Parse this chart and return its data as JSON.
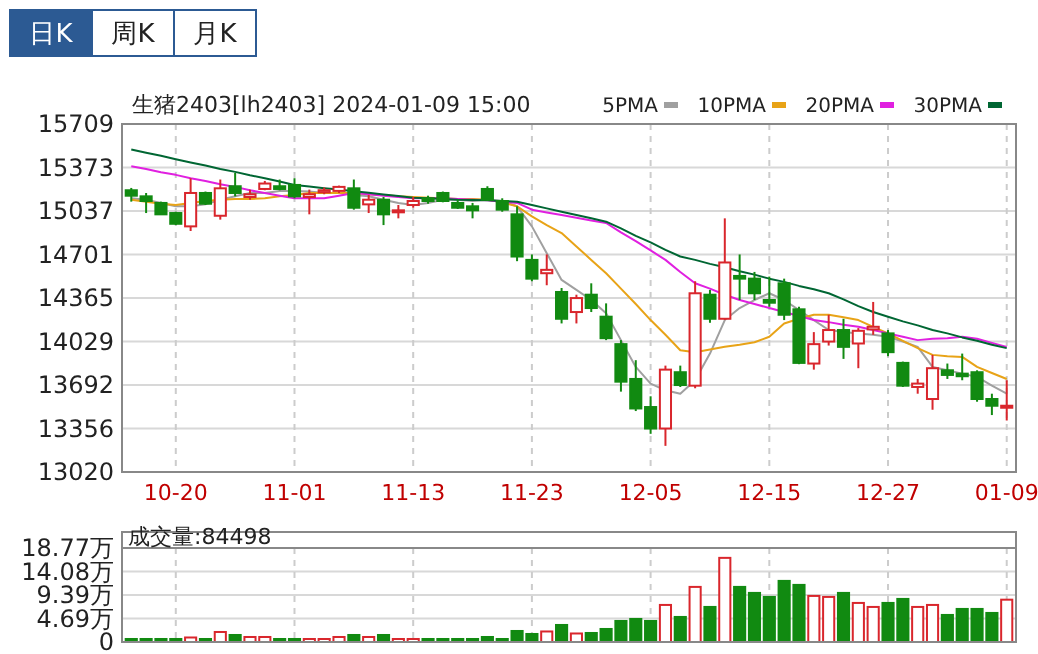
{
  "chart_data": [
    {
      "type": "candlestick",
      "title": "生猪2403[lh2403] 2024-01-09 15:00",
      "annotations": [
        "日K",
        "周K",
        "月K"
      ],
      "categories": [
        null,
        null,
        null,
        "10-20",
        null,
        null,
        null,
        null,
        null,
        null,
        null,
        "11-01",
        null,
        null,
        null,
        null,
        null,
        null,
        null,
        "11-13",
        null,
        null,
        null,
        null,
        null,
        null,
        null,
        "11-23",
        null,
        null,
        null,
        null,
        null,
        null,
        null,
        "12-05",
        null,
        null,
        null,
        null,
        null,
        null,
        null,
        "12-15",
        null,
        null,
        null,
        null,
        null,
        null,
        null,
        "12-27",
        null,
        null,
        null,
        null,
        null,
        null,
        null,
        "01-09"
      ],
      "ohlc": [
        [
          15197,
          15215,
          15109,
          15155
        ],
        [
          15150,
          15176,
          15021,
          15114
        ],
        [
          15099,
          15109,
          15011,
          15011
        ],
        [
          15021,
          15031,
          14928,
          14938
        ],
        [
          14918,
          15290,
          14882,
          15176
        ],
        [
          15176,
          15187,
          15083,
          15093
        ],
        [
          15000,
          15280,
          14970,
          15212
        ],
        [
          15228,
          15331,
          15150,
          15176
        ],
        [
          15145,
          15202,
          15124,
          15166
        ],
        [
          15207,
          15269,
          15197,
          15249
        ],
        [
          15228,
          15280,
          15197,
          15207
        ],
        [
          15238,
          15290,
          15135,
          15150
        ],
        [
          15145,
          15202,
          15011,
          15166
        ],
        [
          15181,
          15218,
          15166,
          15197
        ],
        [
          15192,
          15233,
          15176,
          15223
        ],
        [
          15212,
          15280,
          15047,
          15062
        ],
        [
          15088,
          15161,
          15021,
          15124
        ],
        [
          15124,
          15145,
          14928,
          15011
        ],
        [
          15031,
          15083,
          14980,
          15042
        ],
        [
          15083,
          15145,
          15062,
          15114
        ],
        [
          15135,
          15155,
          15093,
          15114
        ],
        [
          15176,
          15187,
          15104,
          15114
        ],
        [
          15099,
          15124,
          15052,
          15062
        ],
        [
          15073,
          15099,
          14980,
          15042
        ],
        [
          15207,
          15228,
          15114,
          15124
        ],
        [
          15114,
          15135,
          15031,
          15047
        ],
        [
          15011,
          15073,
          14649,
          14685
        ],
        [
          14659,
          14701,
          14494,
          14514
        ],
        [
          14556,
          14701,
          14463,
          14582
        ],
        [
          14411,
          14442,
          14168,
          14204
        ],
        [
          14256,
          14390,
          14168,
          14364
        ],
        [
          14390,
          14478,
          14256,
          14287
        ],
        [
          14220,
          14323,
          14039,
          14054
        ],
        [
          14008,
          14039,
          13641,
          13718
        ],
        [
          13739,
          13884,
          13491,
          13511
        ],
        [
          13522,
          13605,
          13315,
          13356
        ],
        [
          13356,
          13842,
          13222,
          13811
        ],
        [
          13791,
          13842,
          13677,
          13692
        ],
        [
          13687,
          14494,
          13667,
          14401
        ],
        [
          14390,
          14427,
          14173,
          14204
        ],
        [
          14204,
          14980,
          14194,
          14639
        ],
        [
          14535,
          14701,
          14349,
          14514
        ],
        [
          14514,
          14566,
          14349,
          14401
        ],
        [
          14349,
          14530,
          14297,
          14328
        ],
        [
          14478,
          14514,
          14194,
          14235
        ],
        [
          14277,
          14297,
          13853,
          13863
        ],
        [
          13858,
          14101,
          13811,
          14008
        ],
        [
          14028,
          14235,
          13997,
          14117
        ],
        [
          14117,
          14204,
          13894,
          13987
        ],
        [
          14013,
          14132,
          13822,
          14111
        ],
        [
          14122,
          14334,
          14080,
          14142
        ],
        [
          14091,
          14117,
          13915,
          13946
        ],
        [
          13863,
          13873,
          13677,
          13687
        ],
        [
          13677,
          13739,
          13625,
          13703
        ],
        [
          13584,
          13925,
          13501,
          13822
        ],
        [
          13806,
          13858,
          13739,
          13770
        ],
        [
          13780,
          13935,
          13729,
          13760
        ],
        [
          13791,
          13806,
          13563,
          13584
        ],
        [
          13584,
          13625,
          13460,
          13532
        ],
        [
          13522,
          13729,
          13418,
          13532
        ]
      ],
      "series": [
        {
          "type": "line",
          "name": "5PMA",
          "color": "#a0a0a0",
          "values": [
            15135,
            15124,
            15099,
            15073,
            15073,
            15088,
            15124,
            15150,
            15176,
            15176,
            15192,
            15192,
            15187,
            15176,
            15176,
            15161,
            15150,
            15124,
            15099,
            15083,
            15099,
            15124,
            15124,
            15114,
            15124,
            15114,
            15073,
            14918,
            14711,
            14504,
            14427,
            14349,
            14246,
            14039,
            13832,
            13703,
            13651,
            13625,
            13729,
            13935,
            14194,
            14287,
            14349,
            14401,
            14349,
            14271,
            14194,
            14117,
            14101,
            14091,
            14080,
            14065,
            14028,
            13987,
            13832,
            13806,
            13780,
            13755,
            13687,
            13625
          ]
        },
        {
          "type": "line",
          "name": "10PMA",
          "color": "#e8a317",
          "values": [
            15124,
            15109,
            15093,
            15083,
            15099,
            15114,
            15124,
            15130,
            15130,
            15135,
            15150,
            15161,
            15176,
            15176,
            15176,
            15176,
            15166,
            15161,
            15150,
            15145,
            15140,
            15135,
            15130,
            15130,
            15124,
            15104,
            15073,
            14995,
            14928,
            14866,
            14763,
            14659,
            14556,
            14437,
            14318,
            14194,
            14080,
            13961,
            13946,
            13966,
            13987,
            14003,
            14023,
            14065,
            14168,
            14204,
            14235,
            14235,
            14215,
            14194,
            14142,
            14091,
            14034,
            13977,
            13925,
            13915,
            13909,
            13832,
            13785,
            13739
          ]
        },
        {
          "type": "line",
          "name": "20PMA",
          "color": "#e020e0",
          "values": [
            15383,
            15362,
            15336,
            15316,
            15290,
            15269,
            15243,
            15223,
            15197,
            15176,
            15155,
            15135,
            15135,
            15135,
            15155,
            15176,
            15166,
            15155,
            15145,
            15135,
            15135,
            15135,
            15130,
            15124,
            15119,
            15109,
            15099,
            15047,
            15026,
            15006,
            14985,
            14964,
            14944,
            14871,
            14804,
            14732,
            14659,
            14566,
            14478,
            14437,
            14390,
            14349,
            14318,
            14287,
            14256,
            14225,
            14194,
            14178,
            14158,
            14142,
            14117,
            14091,
            14065,
            14039,
            14049,
            14054,
            14065,
            14049,
            14018,
            13987
          ]
        },
        {
          "type": "line",
          "name": "30PMA",
          "color": "#006633",
          "values": [
            15512,
            15487,
            15463,
            15437,
            15412,
            15388,
            15362,
            15339,
            15313,
            15290,
            15264,
            15238,
            15226,
            15213,
            15202,
            15189,
            15177,
            15164,
            15152,
            15140,
            15135,
            15130,
            15124,
            15122,
            15119,
            15114,
            15109,
            15083,
            15057,
            15031,
            15006,
            14980,
            14954,
            14902,
            14845,
            14794,
            14737,
            14685,
            14659,
            14628,
            14602,
            14571,
            14545,
            14514,
            14489,
            14458,
            14432,
            14401,
            14354,
            14302,
            14256,
            14220,
            14184,
            14153,
            14117,
            14091,
            14060,
            14034,
            14003,
            13977
          ]
        }
      ],
      "ylim": [
        13020,
        15709
      ],
      "yticks": [
        13020,
        13356,
        13692,
        14029,
        14365,
        14701,
        15037,
        15373,
        15709
      ],
      "grid": true,
      "legend": "top right"
    },
    {
      "type": "bar",
      "title": "成交量:84498",
      "tick_labels": "y",
      "categories": [
        null,
        null,
        null,
        null,
        null,
        null,
        null,
        null,
        null,
        null,
        null,
        null,
        null,
        null,
        null,
        null,
        null,
        null,
        null,
        null,
        null,
        null,
        null,
        null,
        null,
        null,
        null,
        null,
        null,
        null,
        null,
        null,
        null,
        null,
        null,
        null,
        null,
        null,
        null,
        null,
        null,
        null,
        null,
        null,
        null,
        null,
        null,
        null,
        null,
        null,
        null,
        null,
        null,
        null,
        null,
        null,
        null,
        null,
        null,
        null
      ],
      "values": [
        0.6,
        0.6,
        0.6,
        0.6,
        0.9,
        0.6,
        2.0,
        1.4,
        1.0,
        1.0,
        0.6,
        0.6,
        0.6,
        0.6,
        1.0,
        1.4,
        1.0,
        1.4,
        0.6,
        0.6,
        0.6,
        0.6,
        0.6,
        0.6,
        1.0,
        0.6,
        2.2,
        1.6,
        2.1,
        3.4,
        1.7,
        1.8,
        2.6,
        4.2,
        4.6,
        4.2,
        7.4,
        5.0,
        11.0,
        7.0,
        16.8,
        11.0,
        9.8,
        9.0,
        12.2,
        11.4,
        9.2,
        9.0,
        9.8,
        7.8,
        7.0,
        7.8,
        8.6,
        7.0,
        7.4,
        5.4,
        6.6,
        6.6,
        5.8,
        8.45
      ],
      "colors": [
        "#118a11",
        "#118a11",
        "#118a11",
        "#118a11",
        "#d9262c",
        "#118a11",
        "#d9262c",
        "#118a11",
        "#d9262c",
        "#d9262c",
        "#118a11",
        "#118a11",
        "#d9262c",
        "#d9262c",
        "#d9262c",
        "#118a11",
        "#d9262c",
        "#118a11",
        "#d9262c",
        "#d9262c",
        "#118a11",
        "#118a11",
        "#118a11",
        "#118a11",
        "#118a11",
        "#118a11",
        "#118a11",
        "#118a11",
        "#d9262c",
        "#118a11",
        "#d9262c",
        "#118a11",
        "#118a11",
        "#118a11",
        "#118a11",
        "#118a11",
        "#d9262c",
        "#118a11",
        "#d9262c",
        "#118a11",
        "#d9262c",
        "#118a11",
        "#118a11",
        "#118a11",
        "#118a11",
        "#118a11",
        "#d9262c",
        "#d9262c",
        "#118a11",
        "#d9262c",
        "#d9262c",
        "#118a11",
        "#118a11",
        "#d9262c",
        "#d9262c",
        "#118a11",
        "#118a11",
        "#118a11",
        "#118a11",
        "#d9262c"
      ],
      "ylim": [
        0,
        18.77
      ],
      "yticks": [
        0,
        {
          "value": 4.69,
          "label": "4.69万"
        },
        {
          "value": 9.39,
          "label": "9.39万"
        },
        {
          "value": 14.08,
          "label": "14.08万"
        },
        {
          "value": 18.77,
          "label": "18.77万"
        }
      ],
      "grid": true
    }
  ]
}
